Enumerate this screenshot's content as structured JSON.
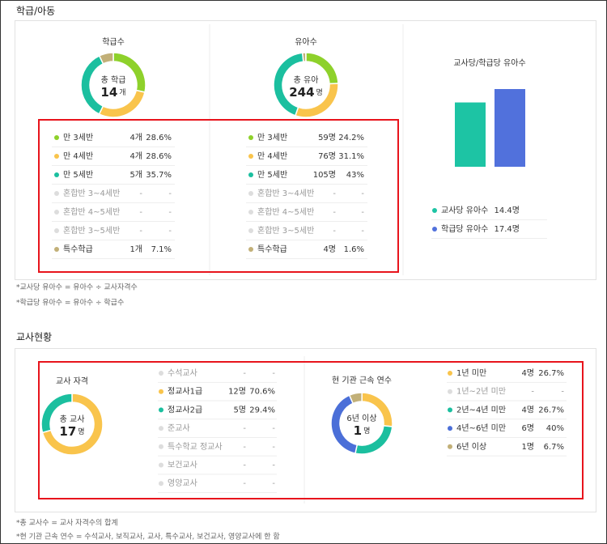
{
  "class_children": {
    "title": "학급/아동",
    "classes": {
      "title": "학급수",
      "total_label": "총 학급",
      "total_value": 14,
      "total_unit": "개",
      "rows": [
        {
          "label": "만 3세반",
          "color": "#8ed12b",
          "count_label": "4개",
          "percent": 28.6,
          "percent_label": "28.6%"
        },
        {
          "label": "만 4세반",
          "color": "#f9c44c",
          "count_label": "4개",
          "percent": 28.6,
          "percent_label": "28.6%"
        },
        {
          "label": "만 5세반",
          "color": "#1bbf9f",
          "count_label": "5개",
          "percent": 35.7,
          "percent_label": "35.7%"
        },
        {
          "label": "혼합반 3~4세반",
          "color": "#dddddd",
          "count_label": "-",
          "percent": null,
          "percent_label": "-"
        },
        {
          "label": "혼합반 4~5세반",
          "color": "#dddddd",
          "count_label": "-",
          "percent": null,
          "percent_label": "-"
        },
        {
          "label": "혼합반 3~5세반",
          "color": "#dddddd",
          "count_label": "-",
          "percent": null,
          "percent_label": "-"
        },
        {
          "label": "특수학급",
          "color": "#c2b078",
          "count_label": "1개",
          "percent": 7.1,
          "percent_label": "7.1%"
        }
      ]
    },
    "children": {
      "title": "유아수",
      "total_label": "총 유아",
      "total_value": 244,
      "total_unit": "명",
      "rows": [
        {
          "label": "만 3세반",
          "color": "#8ed12b",
          "count_label": "59명",
          "percent": 24.2,
          "percent_label": "24.2%"
        },
        {
          "label": "만 4세반",
          "color": "#f9c44c",
          "count_label": "76명",
          "percent": 31.1,
          "percent_label": "31.1%"
        },
        {
          "label": "만 5세반",
          "color": "#1bbf9f",
          "count_label": "105명",
          "percent": 43,
          "percent_label": "43%"
        },
        {
          "label": "혼합반 3~4세반",
          "color": "#dddddd",
          "count_label": "-",
          "percent": null,
          "percent_label": "-"
        },
        {
          "label": "혼합반 4~5세반",
          "color": "#dddddd",
          "count_label": "-",
          "percent": null,
          "percent_label": "-"
        },
        {
          "label": "혼합반 3~5세반",
          "color": "#dddddd",
          "count_label": "-",
          "percent": null,
          "percent_label": "-"
        },
        {
          "label": "특수학급",
          "color": "#c2b078",
          "count_label": "4명",
          "percent": 1.6,
          "percent_label": "1.6%"
        }
      ]
    },
    "ratio": {
      "title": "교사당/학급당 유아수",
      "rows": [
        {
          "label": "교사당 유아수",
          "color": "#1dc4a4",
          "value": 14.4,
          "value_label": "14.4명"
        },
        {
          "label": "학급당 유아수",
          "color": "#5171dc",
          "value": 17.4,
          "value_label": "17.4명"
        }
      ]
    },
    "notes": [
      "*교사당 유아수 = 유아수 ÷ 교사자격수",
      "*학급당 유아수 = 유아수 ÷ 학급수"
    ]
  },
  "teachers": {
    "title": "교사현황",
    "qualification": {
      "title": "교사 자격",
      "total_label": "총 교사",
      "total_value": 17,
      "total_unit": "명",
      "rows": [
        {
          "label": "수석교사",
          "color": "#dddddd",
          "count_label": "-",
          "percent": null,
          "percent_label": "-"
        },
        {
          "label": "정교사1급",
          "color": "#f9c44c",
          "count_label": "12명",
          "percent": 70.6,
          "percent_label": "70.6%"
        },
        {
          "label": "정교사2급",
          "color": "#1bbf9f",
          "count_label": "5명",
          "percent": 29.4,
          "percent_label": "29.4%"
        },
        {
          "label": "준교사",
          "color": "#dddddd",
          "count_label": "-",
          "percent": null,
          "percent_label": "-"
        },
        {
          "label": "특수학교 정교사",
          "color": "#dddddd",
          "count_label": "-",
          "percent": null,
          "percent_label": "-"
        },
        {
          "label": "보건교사",
          "color": "#dddddd",
          "count_label": "-",
          "percent": null,
          "percent_label": "-"
        },
        {
          "label": "영양교사",
          "color": "#dddddd",
          "count_label": "-",
          "percent": null,
          "percent_label": "-"
        }
      ]
    },
    "tenure": {
      "title": "현 기관 근속 연수",
      "total_label": "6년 이상",
      "total_value": 1,
      "total_unit": "명",
      "rows": [
        {
          "label": "1년 미만",
          "color": "#f9c44c",
          "count_label": "4명",
          "percent": 26.7,
          "percent_label": "26.7%"
        },
        {
          "label": "1년~2년 미만",
          "color": "#dddddd",
          "count_label": "-",
          "percent": null,
          "percent_label": "-"
        },
        {
          "label": "2년~4년 미만",
          "color": "#1bbf9f",
          "count_label": "4명",
          "percent": 26.7,
          "percent_label": "26.7%"
        },
        {
          "label": "4년~6년 미만",
          "color": "#4b6fd8",
          "count_label": "6명",
          "percent": 40,
          "percent_label": "40%"
        },
        {
          "label": "6년 이상",
          "color": "#c2b078",
          "count_label": "1명",
          "percent": 6.7,
          "percent_label": "6.7%"
        }
      ]
    },
    "notes": [
      "*총 교사수 = 교사 자격수의 합계",
      "*현 기관 근속 연수 = 수석교사, 보직교사, 교사, 특수교사, 보건교사, 영양교사에 한 함"
    ]
  }
}
